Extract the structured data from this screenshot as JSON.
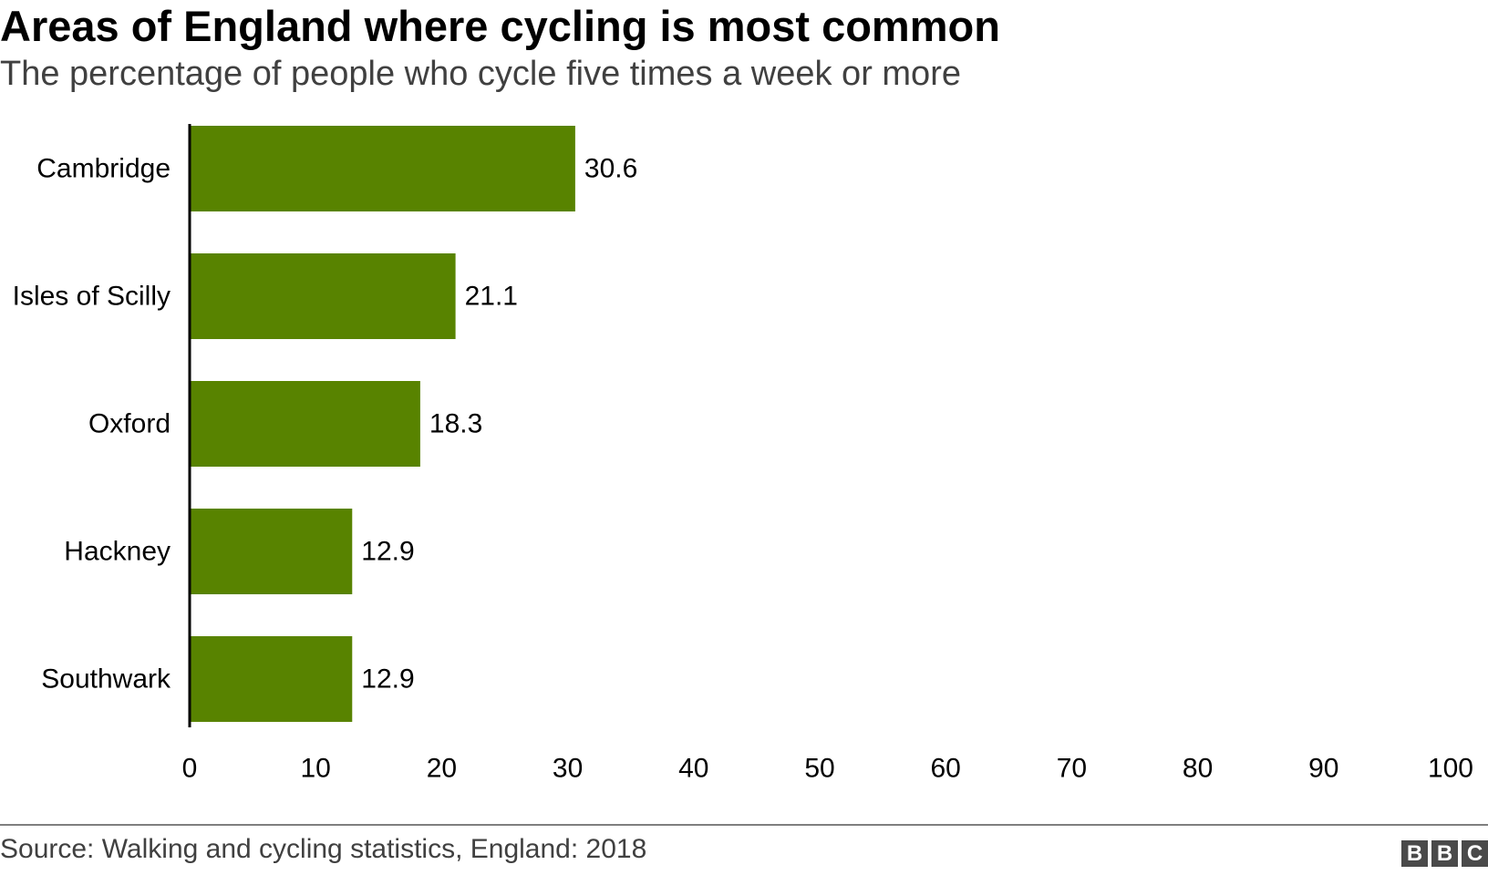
{
  "header": {
    "title": "Areas of England where cycling is most common",
    "subtitle": "The percentage of people who cycle five times a week or more"
  },
  "footer": {
    "source": "Source: Walking and cycling statistics, England: 2018",
    "logo_letters": [
      "B",
      "B",
      "C"
    ]
  },
  "colors": {
    "bar": "#588300",
    "axis": "#000000",
    "text": "#000000",
    "subtitle": "#404040",
    "rule": "#7f7f7f",
    "logo": "#4a4a4a"
  },
  "chart_data": {
    "type": "bar",
    "orientation": "horizontal",
    "title": "Areas of England where cycling is most common",
    "subtitle": "The percentage of people who cycle five times a week or more",
    "xlabel": "",
    "ylabel": "",
    "categories": [
      "Cambridge",
      "Isles of Scilly",
      "Oxford",
      "Hackney",
      "Southwark"
    ],
    "values": [
      30.6,
      21.1,
      18.3,
      12.9,
      12.9
    ],
    "data_labels": [
      "30.6",
      "21.1",
      "18.3",
      "12.9",
      "12.9"
    ],
    "xlim": [
      0,
      100
    ],
    "xticks": [
      0,
      10,
      20,
      30,
      40,
      50,
      60,
      70,
      80,
      90,
      100
    ],
    "grid": false,
    "legend": "none"
  }
}
